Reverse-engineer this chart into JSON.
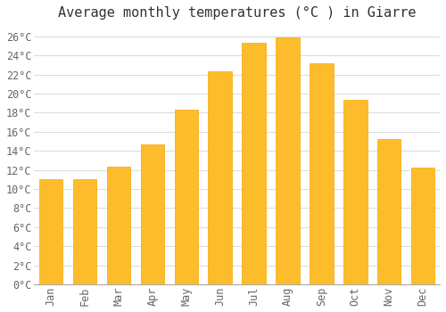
{
  "title": "Average monthly temperatures (°C ) in Giarre",
  "months": [
    "Jan",
    "Feb",
    "Mar",
    "Apr",
    "May",
    "Jun",
    "Jul",
    "Aug",
    "Sep",
    "Oct",
    "Nov",
    "Dec"
  ],
  "values": [
    11,
    11,
    12.3,
    14.7,
    18.3,
    22.3,
    25.3,
    25.9,
    23.2,
    19.3,
    15.2,
    12.2
  ],
  "bar_color": "#FDBC2C",
  "bar_color2": "#F5A800",
  "background_color": "#FFFFFF",
  "plot_bg_color": "#FFFFFF",
  "grid_color": "#DDDDDD",
  "text_color": "#666666",
  "ylim": [
    0,
    27
  ],
  "yticks": [
    0,
    2,
    4,
    6,
    8,
    10,
    12,
    14,
    16,
    18,
    20,
    22,
    24,
    26
  ],
  "title_fontsize": 11,
  "tick_fontsize": 8.5,
  "bar_width": 0.7
}
